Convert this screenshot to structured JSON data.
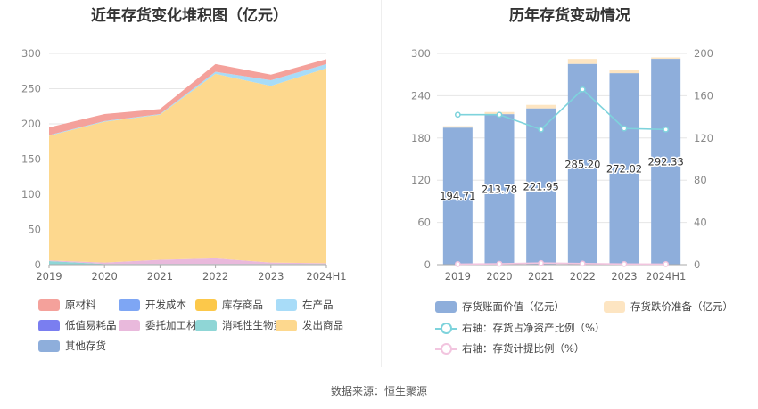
{
  "left_chart": {
    "title": "近年存货变化堆积图（亿元）",
    "legend": [
      {
        "name": "原材料",
        "color": "#f4a19b"
      },
      {
        "name": "开发成本",
        "color": "#7ea6f4"
      },
      {
        "name": "库存商品",
        "color": "#fcc84a"
      },
      {
        "name": "在产品",
        "color": "#a8dcf8"
      },
      {
        "name": "低值易耗品",
        "color": "#7a7ef0"
      },
      {
        "name": "委托加工材料",
        "color": "#e9b9dc"
      },
      {
        "name": "消耗性生物资产",
        "color": "#8fd6d6"
      },
      {
        "name": "发出商品",
        "color": "#fdd88e"
      },
      {
        "name": "其他存货",
        "color": "#8eaedb"
      }
    ]
  },
  "right_chart": {
    "title": "历年存货变动情况",
    "legend": [
      {
        "name": "存货账面价值（亿元）",
        "color": "#8eaedb",
        "kind": "bar"
      },
      {
        "name": "存货跌价准备（亿元）",
        "color": "#fde5c2",
        "kind": "bar"
      },
      {
        "name": "右轴：存货占净资产比例（%）",
        "color": "#7ed3dc",
        "kind": "line"
      },
      {
        "name": "右轴：存货计提比例（%）",
        "color": "#f2c5df",
        "kind": "line"
      }
    ]
  },
  "footer": "数据来源：恒生聚源",
  "chart_data": [
    {
      "type": "area",
      "stacked": true,
      "title": "近年存货变化堆积图（亿元）",
      "categories": [
        "2019",
        "2020",
        "2021",
        "2022",
        "2023",
        "2024H1"
      ],
      "ylim": [
        0,
        300
      ],
      "yticks": [
        0,
        50,
        100,
        150,
        200,
        250,
        300
      ],
      "grid": true,
      "legend_position": "bottom",
      "series": [
        {
          "name": "消耗性生物资产",
          "color": "#8fd6d6",
          "values": [
            5,
            1,
            1,
            1,
            1,
            1
          ]
        },
        {
          "name": "委托加工材料",
          "color": "#e9b9dc",
          "values": [
            1,
            2,
            6,
            8,
            2,
            1
          ]
        },
        {
          "name": "发出商品",
          "color": "#fdd88e",
          "values": [
            177,
            200,
            206,
            262,
            251,
            277
          ]
        },
        {
          "name": "在产品",
          "color": "#a8dcf8",
          "values": [
            1,
            1,
            1,
            3,
            8,
            6
          ]
        },
        {
          "name": "原材料",
          "color": "#f4a19b",
          "values": [
            11,
            10,
            7,
            11,
            8,
            7
          ]
        }
      ]
    },
    {
      "type": "bar",
      "title": "历年存货变动情况",
      "categories": [
        "2019",
        "2020",
        "2021",
        "2022",
        "2023",
        "2024H1"
      ],
      "ylim": [
        0,
        300
      ],
      "yticks": [
        0,
        60,
        120,
        180,
        240,
        300
      ],
      "y2lim": [
        0,
        200
      ],
      "y2ticks": [
        0,
        40,
        80,
        120,
        160,
        200
      ],
      "grid": true,
      "legend_position": "bottom",
      "series": [
        {
          "name": "存货账面价值（亿元）",
          "color": "#8eaedb",
          "values": [
            194.71,
            213.78,
            221.95,
            285.2,
            272.02,
            292.33
          ],
          "labels": [
            "194.71",
            "213.78",
            "221.95",
            "285.20",
            "272.02",
            "292.33"
          ]
        },
        {
          "name": "存货跌价准备（亿元）",
          "color": "#fde5c2",
          "values": [
            2,
            3,
            5,
            7,
            4,
            2
          ]
        },
        {
          "name": "右轴：存货占净资产比例（%）",
          "color": "#7ed3dc",
          "axis": "right",
          "values": [
            142,
            142,
            128,
            166,
            129,
            128
          ]
        },
        {
          "name": "右轴：存货计提比例（%）",
          "color": "#f2c5df",
          "axis": "right",
          "values": [
            0.5,
            0.8,
            1.5,
            1.0,
            0.6,
            0.5
          ]
        }
      ]
    }
  ]
}
